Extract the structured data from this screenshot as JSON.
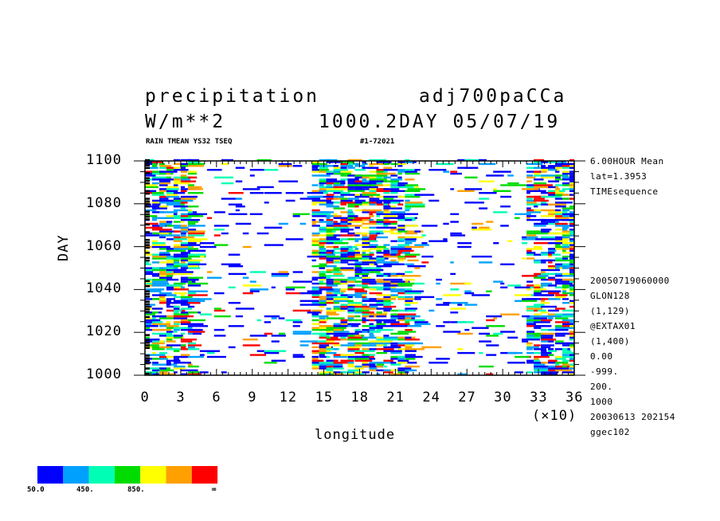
{
  "header": {
    "title_left": "precipitation",
    "title_right": "adj700paCCa",
    "units": "W/m**2",
    "period": "1000.2DAY 05/07/19",
    "subtitle_left": "RAIN TMEAN YS32 TSEQ",
    "subtitle_right": "#1-72021"
  },
  "side_info": {
    "top": [
      "6.00HOUR Mean",
      "lat=1.3953",
      "TIMEsequence"
    ],
    "bottom": [
      "20050719060000",
      "GLON128",
      "(1,129)",
      "@EXTAX01",
      "(1,400)",
      "0.00",
      "-999.",
      "200.",
      "1000",
      "20030613 202154",
      "ggec102"
    ]
  },
  "chart_data": {
    "type": "heatmap",
    "title": "precipitation",
    "xlabel": "longitude",
    "ylabel": "DAY",
    "x_multiplier": "(×10)",
    "xlim": [
      0,
      36
    ],
    "ylim": [
      1000,
      1100
    ],
    "x_ticks": [
      "0",
      "3",
      "6",
      "9",
      "12",
      "15",
      "18",
      "21",
      "24",
      "27",
      "30",
      "33",
      "36"
    ],
    "y_ticks": [
      "1000",
      "1020",
      "1040",
      "1060",
      "1080",
      "1100"
    ],
    "colorbar": {
      "colors": [
        "#0000ff",
        "#00a0ff",
        "#00ffb4",
        "#00dc00",
        "#ffff00",
        "#ffa000",
        "#ff0000"
      ],
      "labels": [
        "50.0",
        "450.",
        "850.",
        "∞"
      ]
    },
    "activity_regions": [
      {
        "x_range": [
          0,
          4
        ],
        "day_range": [
          1000,
          1100
        ],
        "density": "high"
      },
      {
        "x_range": [
          14,
          22
        ],
        "day_range": [
          1000,
          1100
        ],
        "density": "high"
      },
      {
        "x_range": [
          32,
          36
        ],
        "day_range": [
          1000,
          1100
        ],
        "density": "high"
      },
      {
        "x_range": [
          4,
          14
        ],
        "day_range": [
          1000,
          1100
        ],
        "density": "sparse"
      },
      {
        "x_range": [
          22,
          32
        ],
        "day_range": [
          1000,
          1100
        ],
        "density": "sparse"
      }
    ]
  }
}
